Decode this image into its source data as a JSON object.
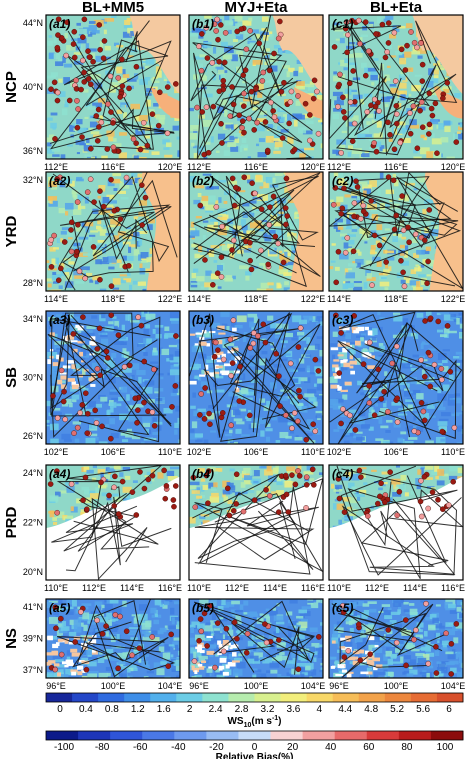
{
  "columns": [
    "BL+MM5",
    "MYJ+Eta",
    "BL+Eta"
  ],
  "rows": [
    {
      "region": "NCP",
      "labels": [
        "(a1)",
        "(b1)",
        "(c1)"
      ],
      "lat_ticks": [
        "44°N",
        "40°N",
        "36°N"
      ],
      "lon_ticks": [
        "112°E",
        "116°E",
        "120°E"
      ],
      "variant": "ncp"
    },
    {
      "region": "YRD",
      "labels": [
        "(a2)",
        "(b2)",
        "(c2)"
      ],
      "lat_ticks": [
        "32°N",
        "28°N"
      ],
      "lon_ticks": [
        "114°E",
        "118°E",
        "122°E"
      ],
      "variant": "yrd"
    },
    {
      "region": "SB",
      "labels": [
        "(a3)",
        "(b3)",
        "(c3)"
      ],
      "lat_ticks": [
        "34°N",
        "30°N",
        "26°N"
      ],
      "lon_ticks": [
        "102°E",
        "106°E",
        "110°E"
      ],
      "variant": "sb"
    },
    {
      "region": "PRD",
      "labels": [
        "(a4)",
        "(b4)",
        "(c4)"
      ],
      "lat_ticks": [
        "24°N",
        "22°N",
        "20°N"
      ],
      "lon_ticks": [
        "110°E",
        "112°E",
        "114°E",
        "116°E"
      ],
      "variant": "prd"
    },
    {
      "region": "NS",
      "labels": [
        "(a5)",
        "(b5)",
        "(c5)"
      ],
      "lat_ticks": [
        "41°N",
        "39°N",
        "37°N"
      ],
      "lon_ticks": [
        "96°E",
        "100°E",
        "104°E"
      ],
      "variant": "ns"
    }
  ],
  "colorbar_ws": {
    "ticks": [
      "0",
      "0.4",
      "0.8",
      "1.2",
      "1.6",
      "2",
      "2.4",
      "2.8",
      "3.2",
      "3.6",
      "4",
      "4.4",
      "4.8",
      "5.2",
      "5.6",
      "6"
    ],
    "label_main": "WS",
    "label_sub": "10",
    "label_unit": "(m s",
    "label_sup": "-1",
    "label_end": ")",
    "colors": [
      "#17279a",
      "#2447c8",
      "#2f6be0",
      "#3e8ee8",
      "#52b0ec",
      "#6ccde6",
      "#8ee2d0",
      "#b6ecae",
      "#d8f08f",
      "#f2ee7c",
      "#f8d868",
      "#f6bd58",
      "#f2a24a",
      "#ec873e",
      "#e66c34",
      "#d8502c"
    ]
  },
  "colorbar_bias": {
    "ticks": [
      "-100",
      "-80",
      "-60",
      "-40",
      "-20",
      "0",
      "20",
      "40",
      "60",
      "80",
      "100"
    ],
    "label": "Relative Bias(%)",
    "colors": [
      "#0c1a8a",
      "#1d35b8",
      "#2f55d8",
      "#4a78e6",
      "#6e9aee",
      "#98bcf3",
      "#c6dcf8",
      "#f8d2d2",
      "#f2a0a0",
      "#e86a6a",
      "#d83a3a",
      "#b81c1c",
      "#8c0c0c"
    ]
  },
  "colors": {
    "ocean_ncp": "#f4c9a0",
    "land_base": "#8fd8c8",
    "station": "#9a1a12"
  }
}
